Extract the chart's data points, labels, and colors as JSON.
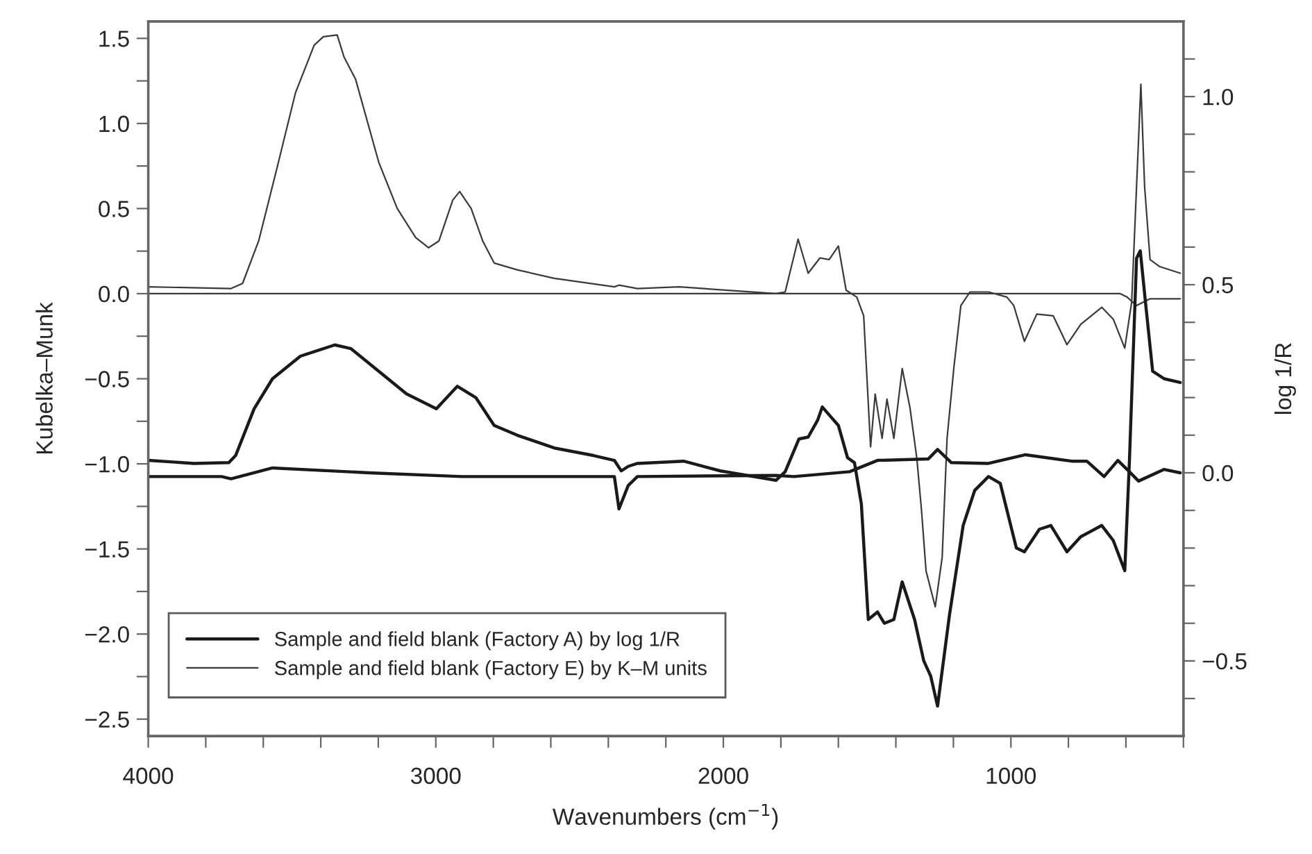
{
  "chart_data": {
    "type": "line",
    "xlabel": "Wavenumbers (cm$^{−1}$)",
    "ylabel": "Kubelka–Munk",
    "y2label": "log 1/R",
    "xlim": [
      4000,
      400
    ],
    "xticks": [
      4000,
      {
        "value": 3800,
        "label": null
      },
      {
        "value": 3600,
        "label": null
      },
      {
        "value": 3400,
        "label": null
      },
      {
        "value": 3200,
        "label": null
      },
      3000,
      {
        "value": 2800,
        "label": null
      },
      {
        "value": 2600,
        "label": null
      },
      {
        "value": 2400,
        "label": null
      },
      {
        "value": 2200,
        "label": null
      },
      2000,
      {
        "value": 1800,
        "label": null
      },
      {
        "value": 1600,
        "label": null
      },
      {
        "value": 1400,
        "label": null
      },
      {
        "value": 1200,
        "label": null
      },
      1000,
      {
        "value": 800,
        "label": null
      },
      {
        "value": 600,
        "label": null
      },
      {
        "value": 400,
        "label": null
      }
    ],
    "ylim": [
      -2.6,
      1.6
    ],
    "yticks": [
      {
        "value": -2.5,
        "label": "−2.5"
      },
      {
        "value": -2.25,
        "label": null
      },
      {
        "value": -2.0,
        "label": "−2.0"
      },
      {
        "value": -1.75,
        "label": null
      },
      {
        "value": -1.5,
        "label": "−1.5"
      },
      {
        "value": -1.25,
        "label": null
      },
      {
        "value": -1.0,
        "label": "−1.0"
      },
      {
        "value": -0.75,
        "label": null
      },
      {
        "value": -0.5,
        "label": "−0.5"
      },
      {
        "value": -0.25,
        "label": null
      },
      {
        "value": 0,
        "label": "0.0"
      },
      {
        "value": 0.25,
        "label": null
      },
      {
        "value": 0.5,
        "label": "0.5"
      },
      {
        "value": 0.75,
        "label": null
      },
      {
        "value": 1.0,
        "label": "1.0"
      },
      {
        "value": 1.25,
        "label": null
      },
      {
        "value": 1.5,
        "label": "1.5"
      }
    ],
    "y2lim": [
      -0.7,
      1.2
    ],
    "y2ticks": [
      {
        "value": -0.6,
        "label": null
      },
      {
        "value": -0.5,
        "label": "−0.5"
      },
      {
        "value": -0.4,
        "label": null
      },
      {
        "value": -0.3,
        "label": null
      },
      {
        "value": -0.2,
        "label": null
      },
      {
        "value": -0.1,
        "label": null
      },
      {
        "value": 0,
        "label": "0.0"
      },
      {
        "value": 0.1,
        "label": null
      },
      {
        "value": 0.2,
        "label": null
      },
      {
        "value": 0.3,
        "label": null
      },
      {
        "value": 0.4,
        "label": null
      },
      {
        "value": 0.5,
        "label": "0.5"
      },
      {
        "value": 0.6,
        "label": null
      },
      {
        "value": 0.7,
        "label": null
      },
      {
        "value": 0.8,
        "label": null
      },
      {
        "value": 0.9,
        "label": null
      },
      {
        "value": 1.0,
        "label": "1.0"
      },
      {
        "value": 1.1,
        "label": null
      }
    ],
    "grid": false,
    "legend": "bottom left",
    "marker": "none",
    "line_style": "solid",
    "series": [
      {
        "name": "Sample and field blank (Factory A) by log 1/R",
        "color": "#1a1a1a",
        "axis": "y2",
        "x": [
          4000,
          3841,
          3720,
          3696,
          3632,
          3568,
          3471,
          3351,
          3295,
          3102,
          2998,
          2925,
          2861,
          2797,
          2717,
          2588,
          2452,
          2379,
          2355,
          2331,
          2299,
          2138,
          2010,
          1817,
          1785,
          1737,
          1705,
          1672,
          1656,
          1600,
          1568,
          1544,
          1520,
          1496,
          1464,
          1440,
          1407,
          1378,
          1335,
          1303,
          1279,
          1255,
          1214,
          1166,
          1126,
          1078,
          1037,
          981,
          953,
          901,
          861,
          805,
          757,
          684,
          644,
          604,
          588,
          563,
          550,
          531,
          507,
          467,
          411
        ],
        "values": [
          0.033,
          0.025,
          0.027,
          0.046,
          0.17,
          0.25,
          0.31,
          0.34,
          0.33,
          0.21,
          0.17,
          0.23,
          0.2,
          0.126,
          0.1,
          0.066,
          0.046,
          0.033,
          0.005,
          0.017,
          0.025,
          0.031,
          0.005,
          -0.02,
          0.003,
          0.09,
          0.095,
          0.14,
          0.175,
          0.126,
          0.04,
          0.027,
          -0.083,
          -0.39,
          -0.37,
          -0.4,
          -0.39,
          -0.29,
          -0.39,
          -0.5,
          -0.54,
          -0.62,
          -0.38,
          -0.14,
          -0.047,
          -0.01,
          -0.028,
          -0.2,
          -0.21,
          -0.15,
          -0.14,
          -0.21,
          -0.17,
          -0.14,
          -0.18,
          -0.26,
          0.027,
          0.57,
          0.59,
          0.446,
          0.27,
          0.25,
          0.24
        ]
      },
      {
        "color": "#1a1a1a",
        "axis": "y2",
        "x": [
          4000,
          3745,
          3712,
          3568,
          3231,
          2910,
          2379,
          2363,
          2331,
          2299,
          1817,
          1754,
          1561,
          1464,
          1287,
          1255,
          1207,
          1078,
          949,
          789,
          736,
          676,
          628,
          588,
          556,
          467,
          411
        ],
        "values": [
          -0.01,
          -0.01,
          -0.016,
          0.013,
          0.0,
          -0.01,
          -0.01,
          -0.096,
          -0.034,
          -0.01,
          -0.007,
          -0.01,
          0.003,
          0.033,
          0.037,
          0.062,
          0.027,
          0.025,
          0.048,
          0.031,
          0.031,
          -0.01,
          0.033,
          0.003,
          -0.022,
          0.009,
          0.0
        ]
      },
      {
        "name": "Sample and field blank (Factory E) by K–M units",
        "color": "#3a3a3a",
        "axis": "y",
        "x": [
          4000,
          3712,
          3672,
          3616,
          3552,
          3488,
          3423,
          3391,
          3343,
          3319,
          3279,
          3198,
          3134,
          3070,
          3025,
          2989,
          2941,
          2917,
          2877,
          2837,
          2797,
          2717,
          2588,
          2379,
          2363,
          2299,
          2154,
          1817,
          1785,
          1740,
          1705,
          1664,
          1632,
          1600,
          1573,
          1536,
          1512,
          1488,
          1472,
          1448,
          1431,
          1407,
          1378,
          1351,
          1327,
          1311,
          1295,
          1263,
          1239,
          1222,
          1198,
          1174,
          1142,
          1078,
          1014,
          990,
          953,
          910,
          853,
          805,
          757,
          684,
          644,
          604,
          580,
          548,
          535,
          516,
          484,
          411
        ],
        "values": [
          0.04,
          0.03,
          0.06,
          0.31,
          0.74,
          1.18,
          1.46,
          1.51,
          1.52,
          1.39,
          1.26,
          0.77,
          0.5,
          0.33,
          0.27,
          0.31,
          0.55,
          0.6,
          0.5,
          0.31,
          0.18,
          0.14,
          0.09,
          0.04,
          0.05,
          0.03,
          0.04,
          0.0,
          0.01,
          0.32,
          0.12,
          0.21,
          0.2,
          0.28,
          0.02,
          -0.02,
          -0.13,
          -0.9,
          -0.59,
          -0.85,
          -0.62,
          -0.85,
          -0.44,
          -0.67,
          -0.97,
          -1.27,
          -1.63,
          -1.84,
          -1.55,
          -0.85,
          -0.43,
          -0.07,
          0.01,
          0.01,
          -0.02,
          -0.07,
          -0.28,
          -0.12,
          -0.13,
          -0.3,
          -0.18,
          -0.08,
          -0.15,
          -0.32,
          -0.05,
          1.23,
          0.63,
          0.2,
          0.16,
          0.12
        ]
      },
      {
        "color": "#3a3a3a",
        "axis": "y",
        "x": [
          4000,
          2000,
          620,
          596,
          563,
          540,
          516,
          411
        ],
        "values": [
          0.0,
          0.0,
          0.0,
          -0.02,
          -0.07,
          -0.05,
          -0.03,
          -0.03
        ]
      }
    ]
  }
}
